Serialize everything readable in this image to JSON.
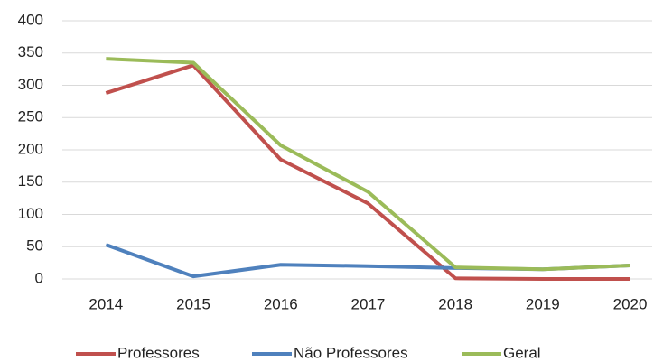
{
  "chart_data": {
    "type": "line",
    "categories": [
      "2014",
      "2015",
      "2016",
      "2017",
      "2018",
      "2019",
      "2020"
    ],
    "series": [
      {
        "name": "Professores",
        "color": "#c0504d",
        "values": [
          288,
          331,
          185,
          117,
          1,
          0,
          0
        ]
      },
      {
        "name": "Não Professores",
        "color": "#4f81bd",
        "values": [
          53,
          4,
          22,
          20,
          17,
          15,
          21
        ]
      },
      {
        "name": "Geral",
        "color": "#9bbb59",
        "values": [
          341,
          335,
          207,
          135,
          18,
          15,
          21
        ]
      }
    ],
    "ylim": [
      0,
      400
    ],
    "yticks": [
      0,
      50,
      100,
      150,
      200,
      250,
      300,
      350,
      400
    ],
    "grid": true,
    "legend": "bottom"
  }
}
